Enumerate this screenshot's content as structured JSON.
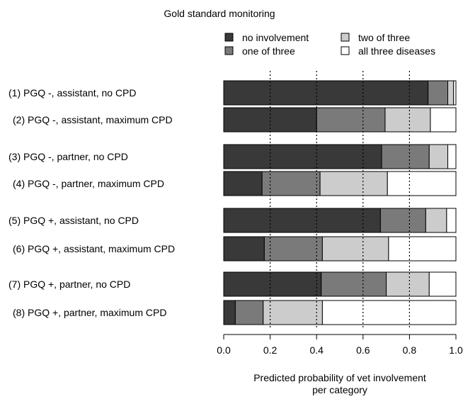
{
  "chart_data": {
    "type": "bar",
    "orientation": "horizontal",
    "stacked": true,
    "title": "Gold standard monitoring",
    "xlabel_line1": "Predicted probability of vet involvement",
    "xlabel_line2": "per category",
    "xlim": [
      0,
      1
    ],
    "xticks": [
      "0.0",
      "0.2",
      "0.4",
      "0.6",
      "0.8",
      "1.0"
    ],
    "xtick_values": [
      0,
      0.2,
      0.4,
      0.6,
      0.8,
      1.0
    ],
    "reference_lines": [
      0.2,
      0.4,
      0.6,
      0.8
    ],
    "legend_position": "top",
    "categories": [
      "(1) PGQ -, assistant, no CPD",
      "(2) PGQ -, assistant, maximum CPD",
      "(3) PGQ -, partner, no CPD",
      "(4) PGQ -, partner, maximum CPD",
      "(5) PGQ +, assistant, no CPD",
      "(6) PGQ +, assistant, maximum CPD",
      "(7) PGQ +, partner, no CPD",
      "(8) PGQ +, partner, maximum CPD"
    ],
    "series": [
      {
        "name": "no involvement",
        "color": "#393939",
        "values": [
          0.88,
          0.4,
          0.68,
          0.165,
          0.675,
          0.175,
          0.42,
          0.05
        ]
      },
      {
        "name": "one of three",
        "color": "#7a7a7a",
        "values": [
          0.085,
          0.295,
          0.205,
          0.25,
          0.195,
          0.25,
          0.28,
          0.12
        ]
      },
      {
        "name": "two of three",
        "color": "#cccccc",
        "values": [
          0.025,
          0.195,
          0.08,
          0.29,
          0.09,
          0.285,
          0.185,
          0.255
        ]
      },
      {
        "name": "all three diseases",
        "color": "#ffffff",
        "values": [
          0.01,
          0.11,
          0.035,
          0.295,
          0.04,
          0.29,
          0.115,
          0.575
        ]
      }
    ]
  }
}
